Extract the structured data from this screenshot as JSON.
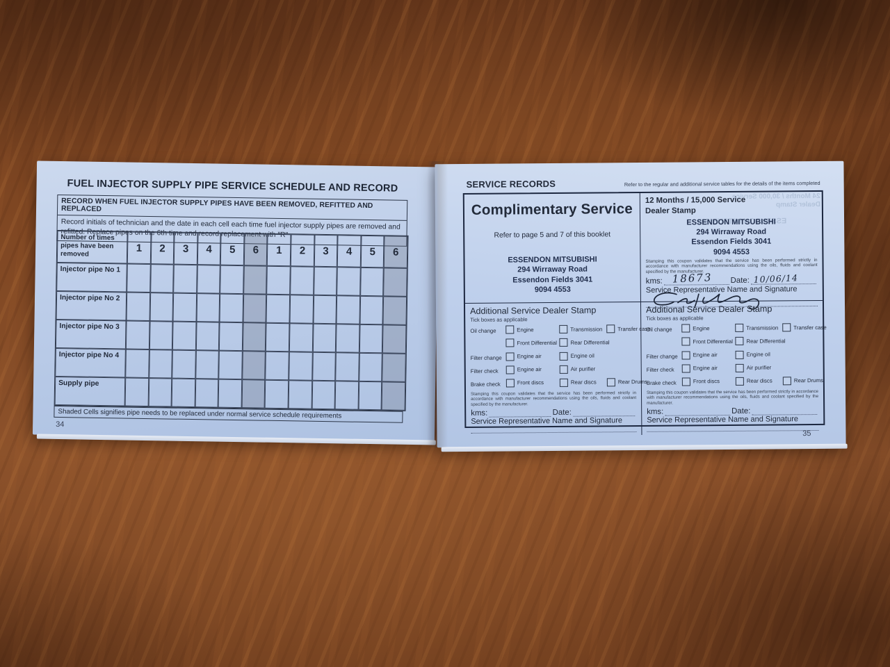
{
  "left_page": {
    "page_number": "34",
    "title": "FUEL INJECTOR SUPPLY PIPE SERVICE SCHEDULE AND RECORD",
    "record_header": "RECORD WHEN FUEL INJECTOR SUPPLY PIPES HAVE BEEN REMOVED, REFITTED AND REPLACED",
    "instructions": "Record initials of technician and the date in each cell each time fuel injector supply pipes are removed and refitted. Replace pipes on the 6th time and record replacement with \"R\"",
    "table": {
      "corner_header": "Number of times pipes have been removed",
      "columns": [
        "1",
        "2",
        "3",
        "4",
        "5",
        "6",
        "1",
        "2",
        "3",
        "4",
        "5",
        "6"
      ],
      "shaded_column_indices": [
        5,
        11
      ],
      "rows": [
        "Injector pipe No 1",
        "Injector pipe No 2",
        "Injector pipe No 3",
        "Injector pipe No 4",
        "Supply pipe"
      ]
    },
    "footnote": "Shaded Cells signifies pipe needs to be replaced under normal service schedule requirements"
  },
  "right_page": {
    "page_number": "35",
    "title": "SERVICE RECORDS",
    "title_note": "Refer to the regular and additional service tables for the details of the items completed",
    "dealer_stamp": [
      "ESSENDON MITSUBISHI",
      "294 Wirraway Road",
      "Essendon Fields 3041",
      "9094 4553"
    ],
    "complimentary": {
      "title": "Complimentary Service",
      "note": "Refer to page 5 and 7 of this booklet"
    },
    "service_12m": {
      "title": "12 Months / 15,000 Service",
      "subtitle": "Dealer Stamp",
      "fine_print": "Stamping this coupon validates that the service has been performed strictly in accordance with manufacturer recommendations using the oils, fluids and coolant specified by the manufacturer.",
      "kms_label": "kms:",
      "kms_value": "18673",
      "date_label": "Date:",
      "date_value": "10/06/14",
      "rep_label": "Service Representative Name and Signature"
    },
    "additional": {
      "title": "Additional Service Dealer Stamp",
      "subtitle": "Tick boxes as applicable",
      "rows": [
        {
          "label": "Oil change",
          "options": [
            "Engine",
            "Transmission",
            "Transfer case"
          ]
        },
        {
          "label": "",
          "options": [
            "Front Differential",
            "Rear Differential"
          ]
        },
        {
          "label": "Filter change",
          "options": [
            "Engine air",
            "Engine oil"
          ]
        },
        {
          "label": "Filter check",
          "options": [
            "Engine air",
            "Air purifier"
          ]
        },
        {
          "label": "Brake check",
          "options": [
            "Front discs",
            "Rear discs",
            "Rear Drums"
          ]
        }
      ],
      "fine_print": "Stamping this coupon validates that the service has been performed strictly in accordance with manufacturer recommendations using the oils, fluids and coolant specified by the manufacturer.",
      "kms_label": "kms:",
      "date_label": "Date:",
      "rep_label": "Service Representative Name and Signature"
    },
    "bleed_through_lines": [
      "24 Months / 30,000 Service",
      "Dealer Stamp",
      "ESSENDON MITSUBISHI"
    ]
  }
}
